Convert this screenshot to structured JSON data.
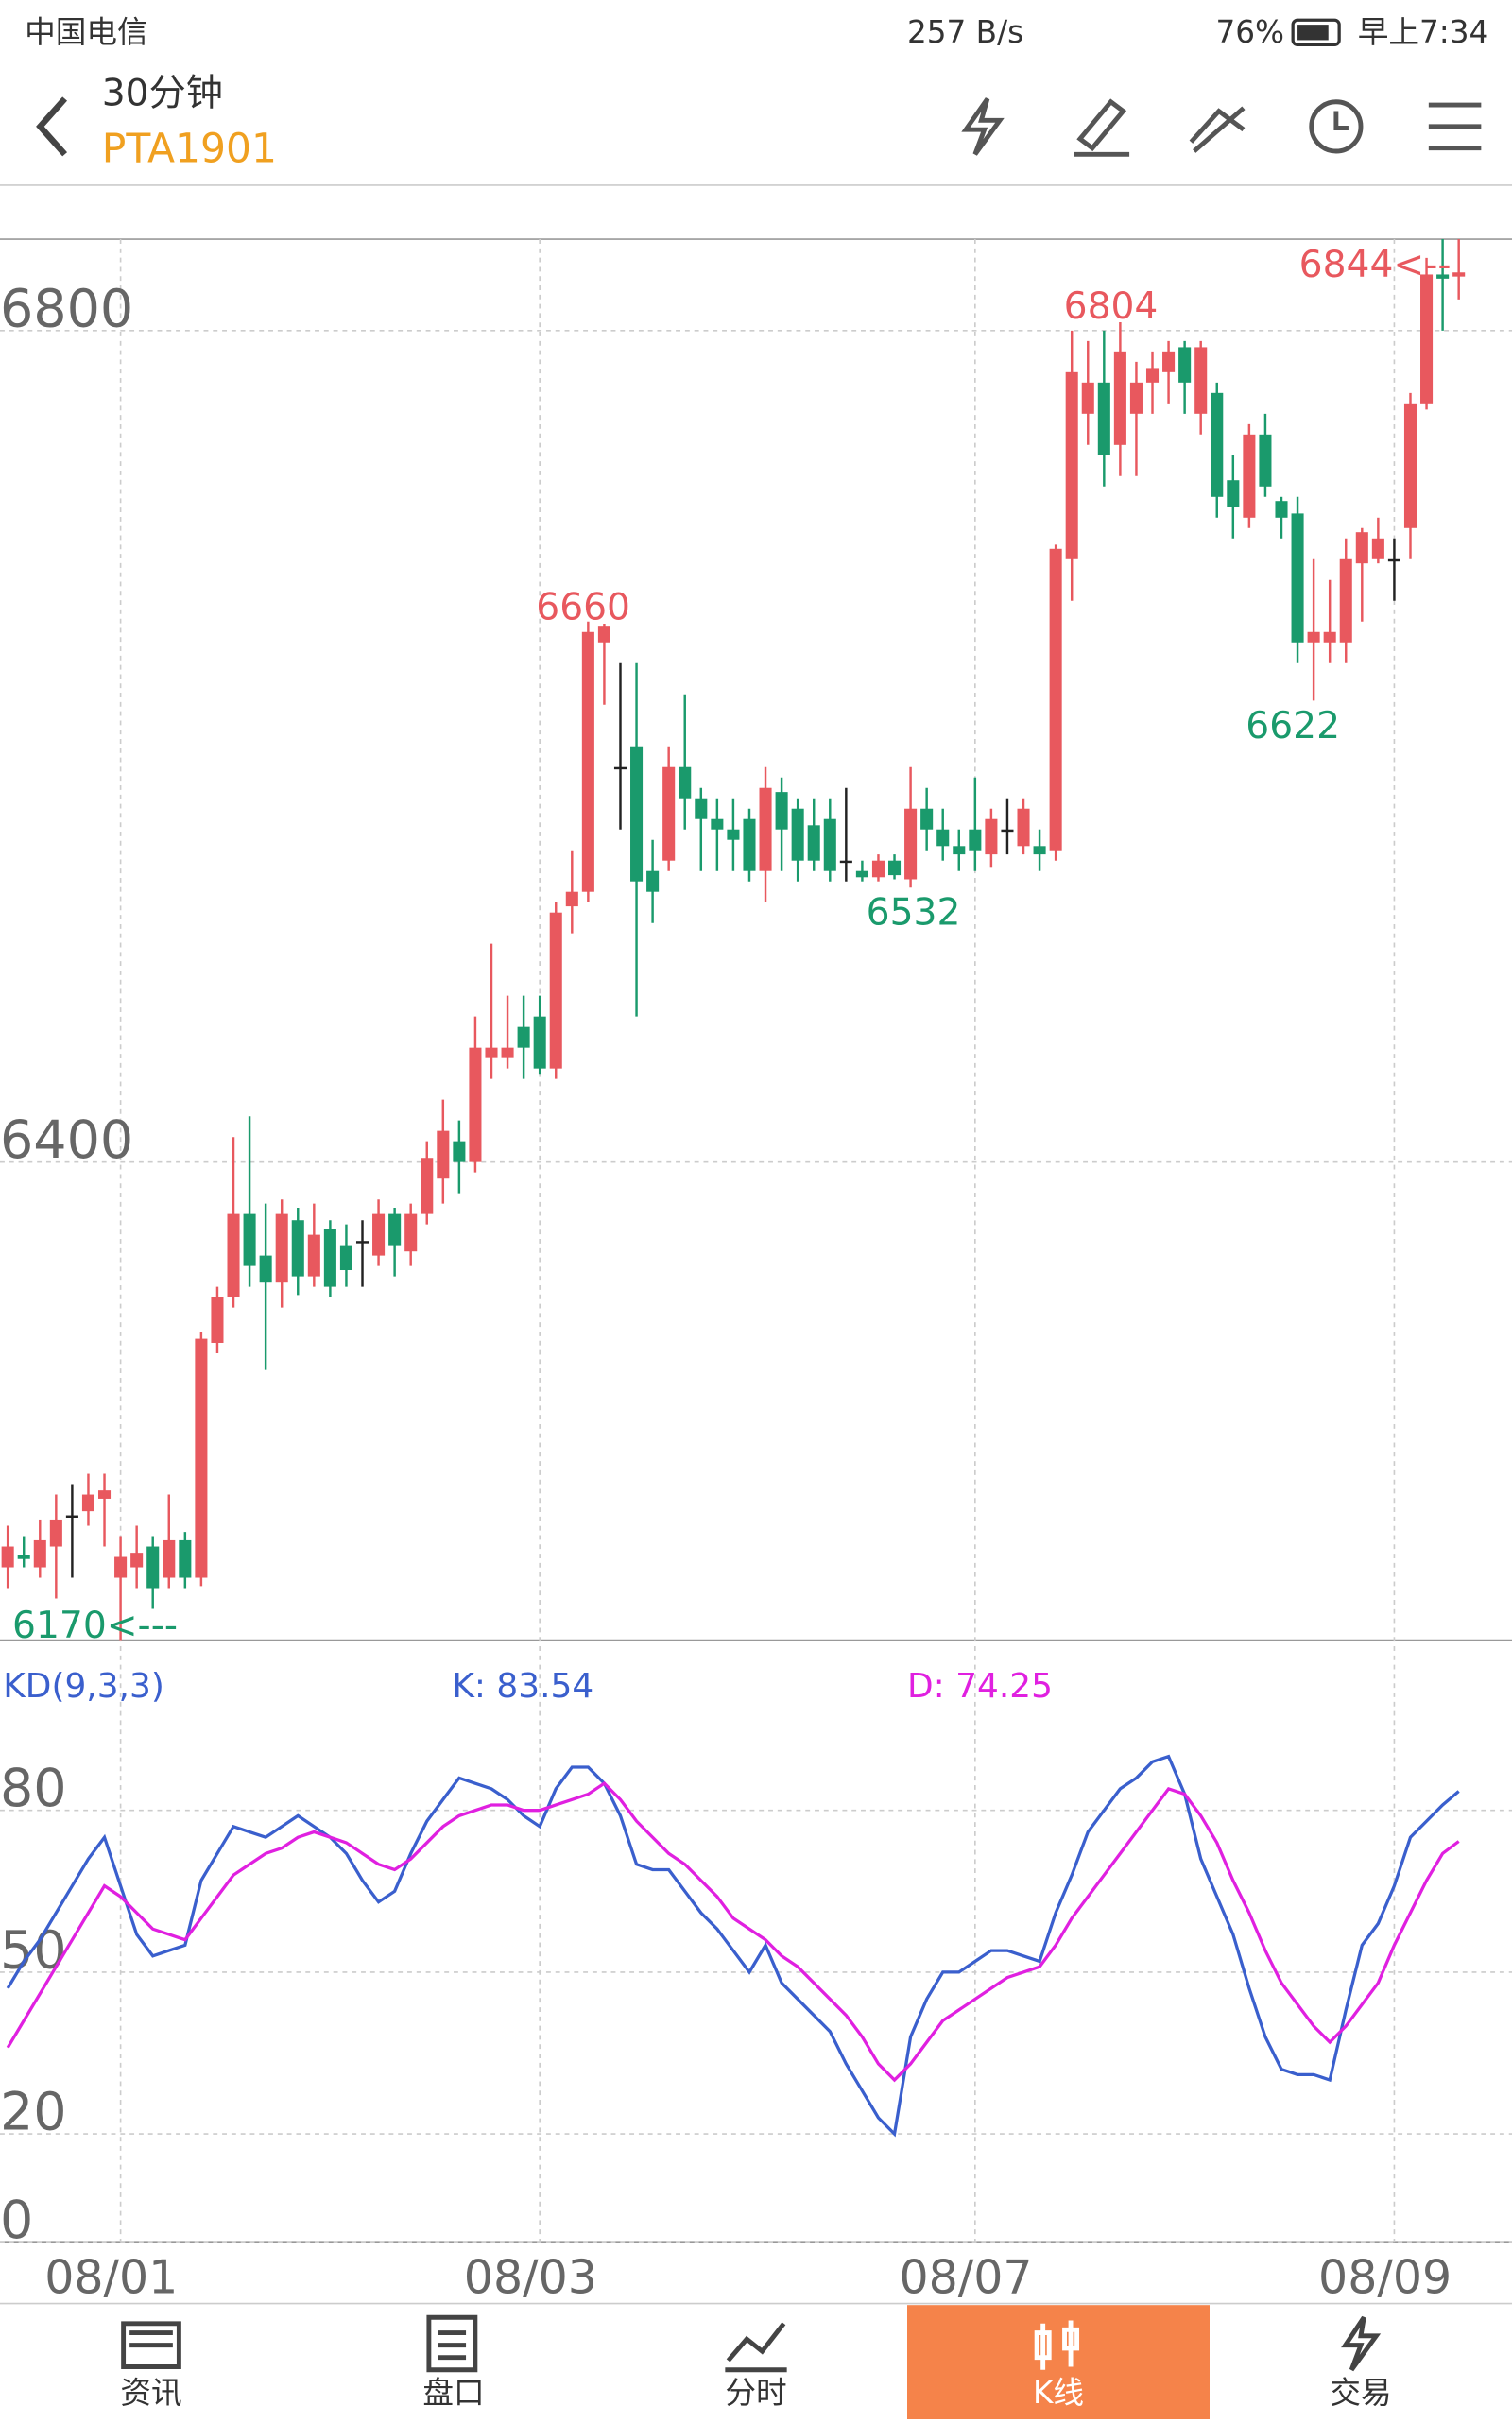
{
  "status_bar": {
    "carrier": "中国电信",
    "speed": "257 B/s",
    "battery": "76%",
    "time": "早上7:34"
  },
  "header": {
    "period": "30分钟",
    "symbol": "PTA1901"
  },
  "chart_data": [
    {
      "type": "candlestick",
      "categories": [
        null,
        null,
        null,
        null,
        null,
        null,
        null,
        "08/01",
        null,
        null,
        null,
        null,
        null,
        null,
        null,
        null,
        null,
        null,
        null,
        null,
        null,
        null,
        null,
        null,
        null,
        null,
        null,
        null,
        null,
        null,
        null,
        null,
        null,
        "08/03",
        null,
        null,
        null,
        null,
        null,
        null,
        null,
        null,
        null,
        null,
        null,
        null,
        null,
        null,
        null,
        null,
        null,
        null,
        null,
        null,
        null,
        null,
        null,
        null,
        null,
        null,
        "08/07",
        null,
        null,
        null,
        null,
        null,
        null,
        null,
        null,
        null,
        null,
        null,
        null,
        null,
        null,
        null,
        null,
        null,
        null,
        null,
        null,
        null,
        null,
        null,
        null,
        null,
        "08/09",
        null,
        null,
        null,
        null
      ],
      "open": [
        6205,
        6211,
        6205,
        6215,
        6230,
        6232,
        6238,
        6200,
        6205,
        6215,
        6200,
        6218,
        6200,
        6313,
        6335,
        6375,
        6355,
        6342,
        6372,
        6345,
        6368,
        6360,
        6362,
        6355,
        6375,
        6357,
        6375,
        6392,
        6410,
        6400,
        6450,
        6450,
        6465,
        6470,
        6445,
        6523,
        6530,
        6650,
        6590,
        6600,
        6540,
        6545,
        6590,
        6575,
        6565,
        6560,
        6565,
        6540,
        6578,
        6570,
        6562,
        6565,
        6545,
        6540,
        6537,
        6545,
        6536,
        6570,
        6560,
        6552,
        6560,
        6548,
        6560,
        6552,
        6552,
        6550,
        6690,
        6760,
        6775,
        6745,
        6760,
        6775,
        6780,
        6792,
        6760,
        6770,
        6728,
        6710,
        6750,
        6718,
        6712,
        6650,
        6650,
        6650,
        6688,
        6690,
        6690,
        6705,
        6765,
        6827,
        6826
      ],
      "high": [
        6225,
        6220,
        6228,
        6240,
        6245,
        6250,
        6250,
        6220,
        6225,
        6220,
        6240,
        6222,
        6318,
        6340,
        6412,
        6422,
        6380,
        6382,
        6378,
        6380,
        6372,
        6370,
        6372,
        6382,
        6378,
        6380,
        6410,
        6430,
        6420,
        6470,
        6505,
        6480,
        6480,
        6480,
        6525,
        6550,
        6660,
        6659,
        6640,
        6640,
        6555,
        6600,
        6625,
        6580,
        6575,
        6575,
        6570,
        6590,
        6585,
        6575,
        6575,
        6575,
        6580,
        6545,
        6548,
        6548,
        6590,
        6580,
        6570,
        6560,
        6585,
        6570,
        6575,
        6575,
        6560,
        6697,
        6800,
        6795,
        6800,
        6804,
        6785,
        6790,
        6795,
        6795,
        6795,
        6775,
        6740,
        6755,
        6760,
        6720,
        6720,
        6690,
        6680,
        6700,
        6705,
        6710,
        6700,
        6770,
        6835,
        6844,
        6844
      ],
      "low": [
        6195,
        6205,
        6200,
        6190,
        6200,
        6225,
        6215,
        6170,
        6195,
        6185,
        6195,
        6195,
        6196,
        6308,
        6330,
        6340,
        6300,
        6330,
        6336,
        6340,
        6335,
        6340,
        6340,
        6350,
        6345,
        6350,
        6370,
        6380,
        6385,
        6395,
        6440,
        6445,
        6440,
        6442,
        6440,
        6510,
        6525,
        6620,
        6560,
        6470,
        6515,
        6540,
        6560,
        6540,
        6540,
        6540,
        6535,
        6525,
        6540,
        6535,
        6540,
        6535,
        6535,
        6535,
        6535,
        6536,
        6532,
        6550,
        6545,
        6540,
        6540,
        6542,
        6548,
        6548,
        6540,
        6545,
        6670,
        6745,
        6725,
        6730,
        6730,
        6760,
        6765,
        6760,
        6750,
        6710,
        6700,
        6705,
        6720,
        6700,
        6640,
        6622,
        6640,
        6640,
        6660,
        6688,
        6670,
        6690,
        6762,
        6800,
        6815
      ],
      "close": [
        6215,
        6209,
        6218,
        6228,
        6230,
        6240,
        6242,
        6210,
        6212,
        6195,
        6218,
        6200,
        6315,
        6335,
        6375,
        6350,
        6342,
        6375,
        6345,
        6365,
        6340,
        6348,
        6362,
        6375,
        6360,
        6375,
        6402,
        6415,
        6400,
        6455,
        6455,
        6455,
        6455,
        6445,
        6520,
        6530,
        6655,
        6658,
        6590,
        6535,
        6530,
        6590,
        6575,
        6565,
        6560,
        6555,
        6540,
        6580,
        6560,
        6545,
        6545,
        6540,
        6545,
        6537,
        6545,
        6538,
        6570,
        6560,
        6552,
        6548,
        6550,
        6565,
        6560,
        6570,
        6548,
        6695,
        6780,
        6775,
        6740,
        6790,
        6775,
        6782,
        6790,
        6775,
        6792,
        6720,
        6715,
        6750,
        6725,
        6710,
        6650,
        6655,
        6655,
        6690,
        6703,
        6700,
        6690,
        6765,
        6827,
        6825,
        6828
      ],
      "up_color": "#e8585e",
      "down_color": "#1a9a6c",
      "flat_color": "#222222",
      "ylim": [
        6170,
        6844
      ],
      "yticks": [
        6400,
        6800
      ],
      "grid": true,
      "annotations": [
        "6660",
        "6532",
        "6804",
        "6622",
        "6844<--",
        "6170<---"
      ]
    },
    {
      "type": "line",
      "title": "KD(9,3,3)",
      "k_label": "K: 83.54",
      "d_label": "D: 74.25",
      "series": [
        {
          "name": "K",
          "color": "#3a5fcd",
          "values": [
            47,
            52,
            56,
            61,
            66,
            71,
            75,
            66,
            57,
            53,
            54,
            55,
            67,
            72,
            77,
            76,
            75,
            77,
            79,
            77,
            75,
            72,
            67,
            63,
            65,
            72,
            78,
            82,
            86,
            85,
            84,
            82,
            79,
            77,
            84,
            88,
            88,
            85,
            79,
            70,
            69,
            69,
            65,
            61,
            58,
            54,
            50,
            55,
            48,
            45,
            42,
            39,
            33,
            28,
            23,
            20,
            38,
            45,
            50,
            50,
            52,
            54,
            54,
            53,
            52,
            61,
            68,
            76,
            80,
            84,
            86,
            89,
            90,
            83,
            71,
            64,
            57,
            47,
            38,
            32,
            31,
            31,
            30,
            43,
            55,
            59,
            66,
            75,
            78,
            81,
            83.54
          ]
        },
        {
          "name": "D",
          "color": "#e020e0",
          "values": [
            36,
            41,
            46,
            51,
            56,
            61,
            66,
            64,
            61,
            58,
            57,
            56,
            60,
            64,
            68,
            70,
            72,
            73,
            75,
            76,
            75,
            74,
            72,
            70,
            69,
            71,
            74,
            77,
            79,
            80,
            81,
            81,
            80,
            80,
            81,
            82,
            83,
            85,
            82,
            78,
            75,
            72,
            70,
            67,
            64,
            60,
            58,
            56,
            53,
            51,
            48,
            45,
            42,
            38,
            33,
            30,
            33,
            37,
            41,
            43,
            45,
            47,
            49,
            50,
            51,
            55,
            60,
            64,
            68,
            72,
            76,
            80,
            84,
            83,
            79,
            74,
            67,
            61,
            54,
            48,
            44,
            40,
            37,
            40,
            44,
            48,
            55,
            61,
            67,
            72,
            74.25
          ]
        }
      ],
      "ylim": [
        0,
        111
      ],
      "yticks": [
        0,
        20,
        50,
        80
      ],
      "grid": true
    }
  ],
  "nav": [
    "资讯",
    "盘口",
    "分时",
    "K线",
    "交易"
  ]
}
